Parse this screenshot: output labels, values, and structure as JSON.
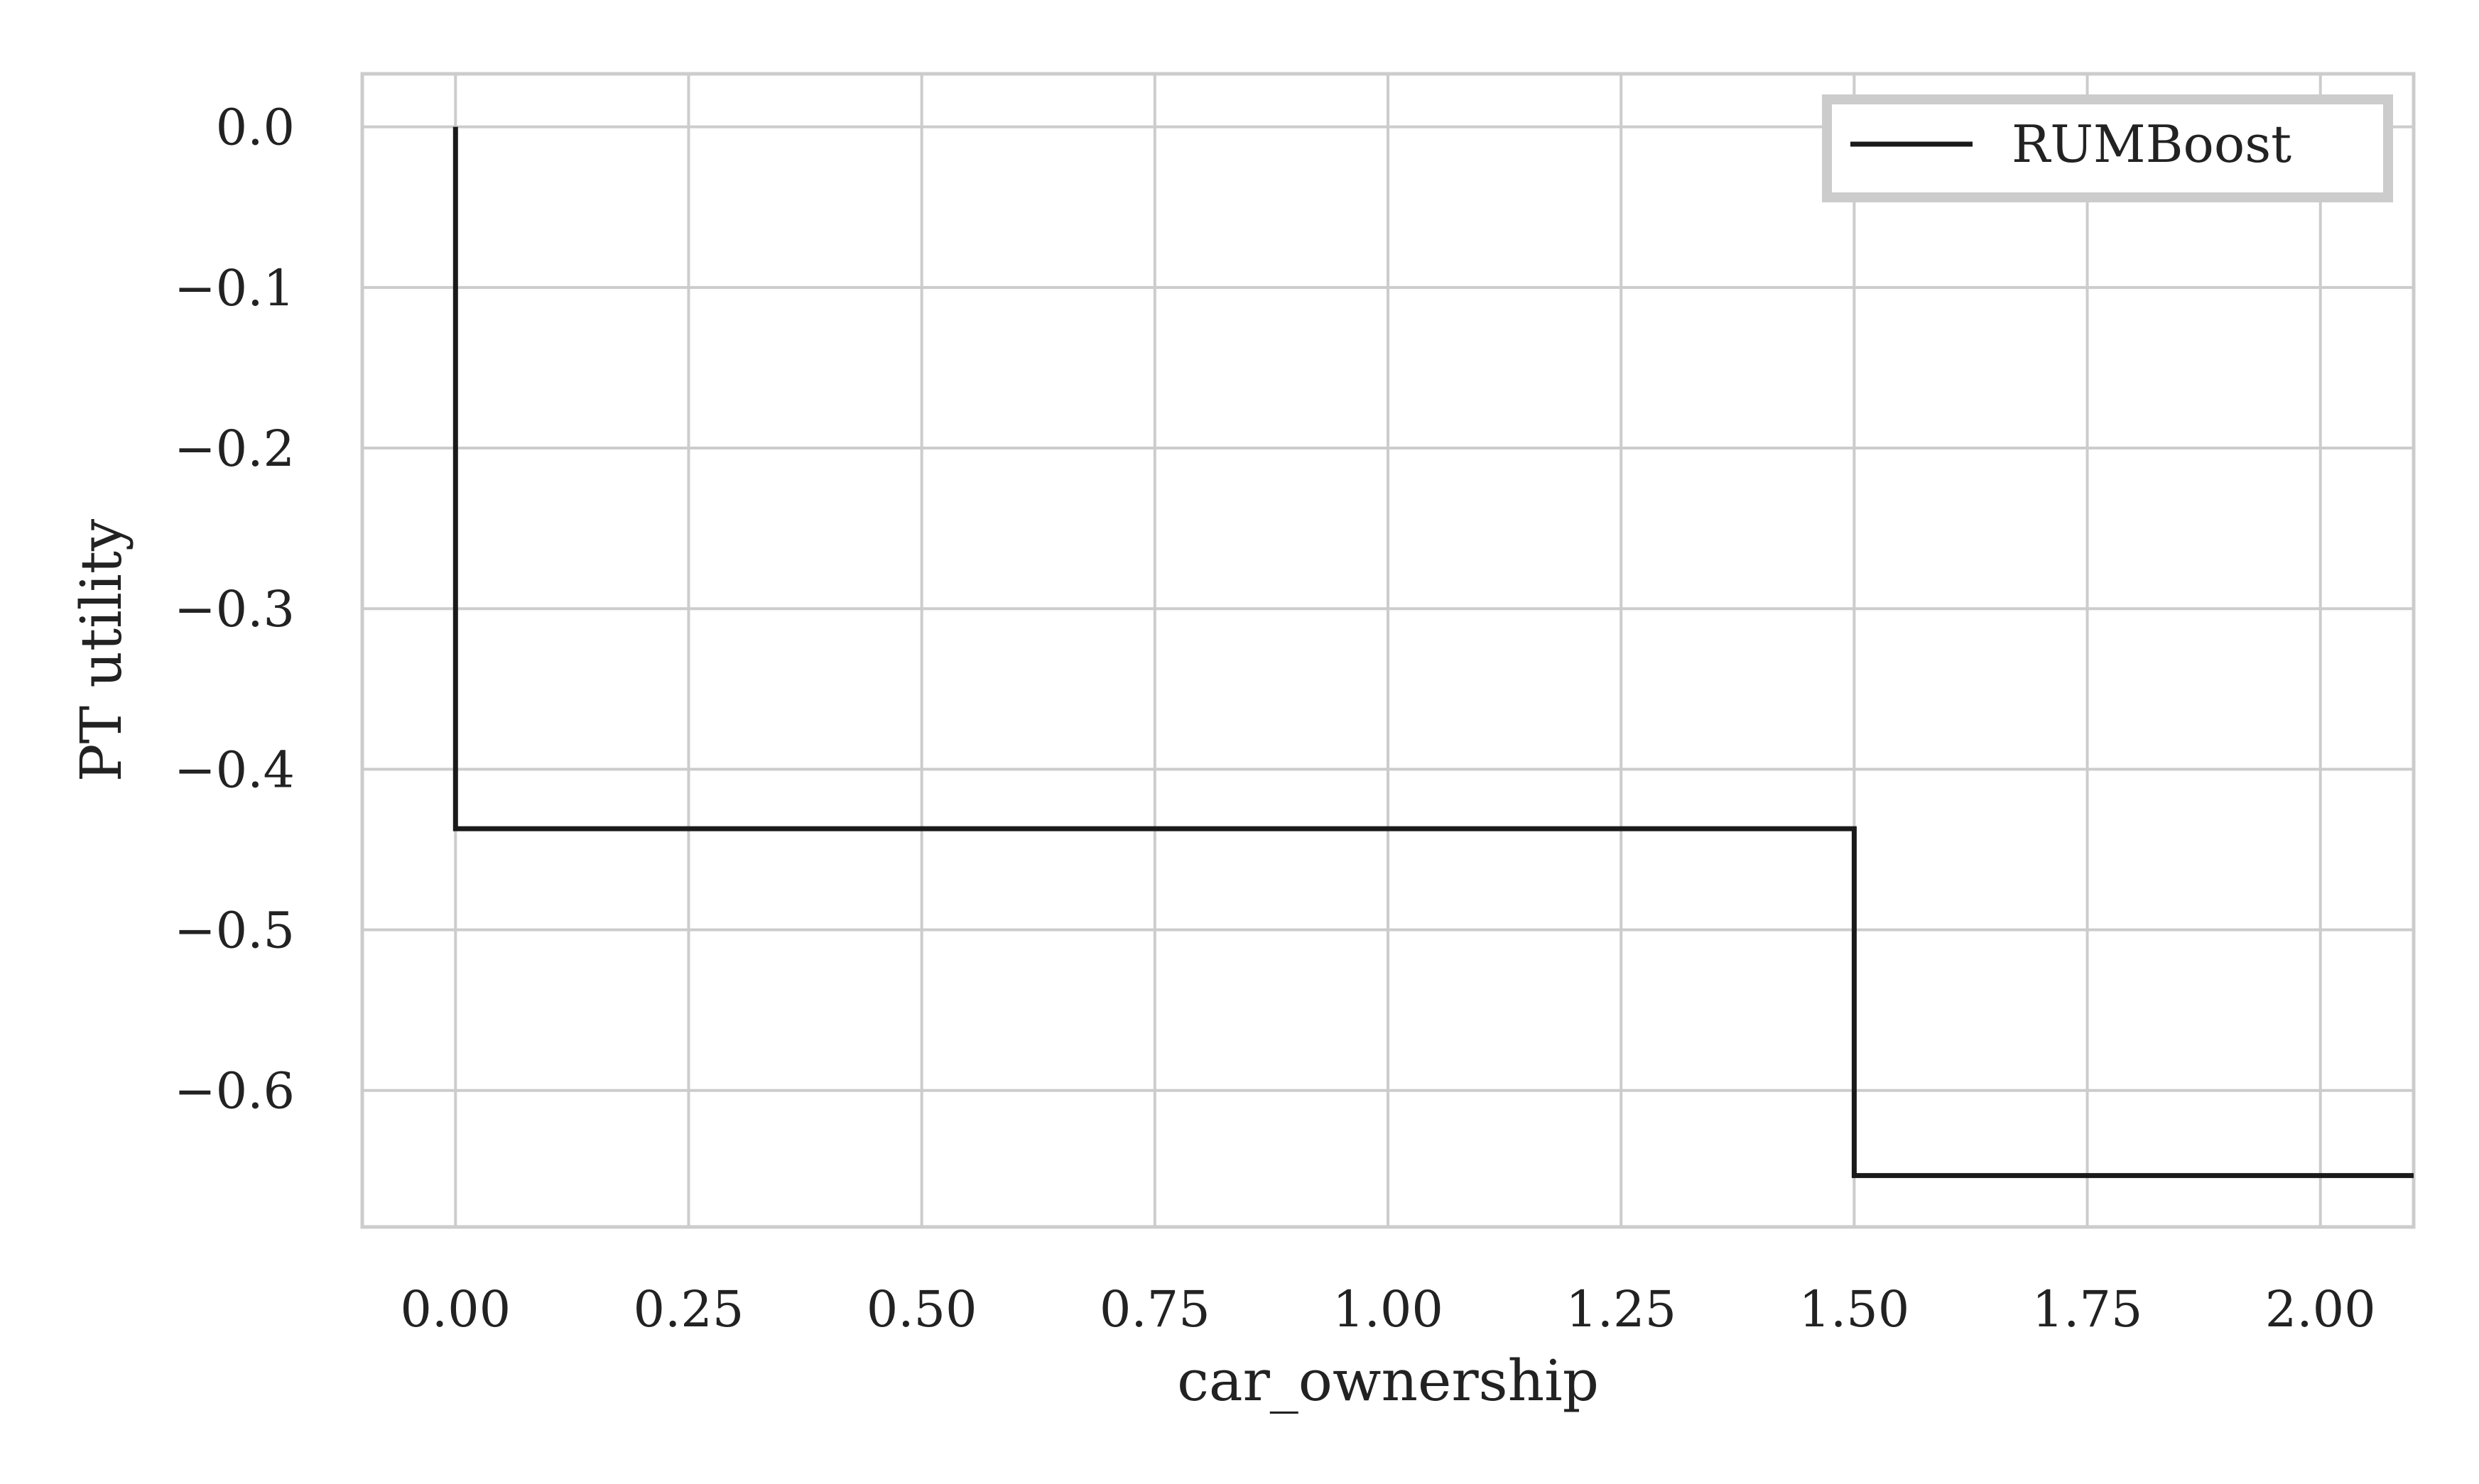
{
  "chart_data": {
    "type": "line",
    "step": true,
    "x": [
      0.0,
      0.0,
      1.5,
      1.5,
      2.1
    ],
    "series": [
      {
        "name": "RUMBoost",
        "values": [
          0.0,
          -0.437,
          -0.437,
          -0.653,
          -0.653
        ],
        "color": "#1a1a1a"
      }
    ],
    "xlabel": "car_ownership",
    "ylabel": "PT utility",
    "xlim": [
      -0.1,
      2.1
    ],
    "ylim": [
      -0.685,
      0.033
    ],
    "xticks": [
      0.0,
      0.25,
      0.5,
      0.75,
      1.0,
      1.25,
      1.5,
      1.75,
      2.0
    ],
    "xtick_labels": [
      "0.00",
      "0.25",
      "0.50",
      "0.75",
      "1.00",
      "1.25",
      "1.50",
      "1.75",
      "2.00"
    ],
    "yticks": [
      0.0,
      -0.1,
      -0.2,
      -0.3,
      -0.4,
      -0.5,
      -0.6
    ],
    "ytick_labels": [
      "0.0",
      "−0.1",
      "−0.2",
      "−0.3",
      "−0.4",
      "−0.5",
      "−0.6"
    ],
    "grid": true,
    "legend": {
      "position": "top-right",
      "entries": [
        "RUMBoost"
      ]
    }
  }
}
